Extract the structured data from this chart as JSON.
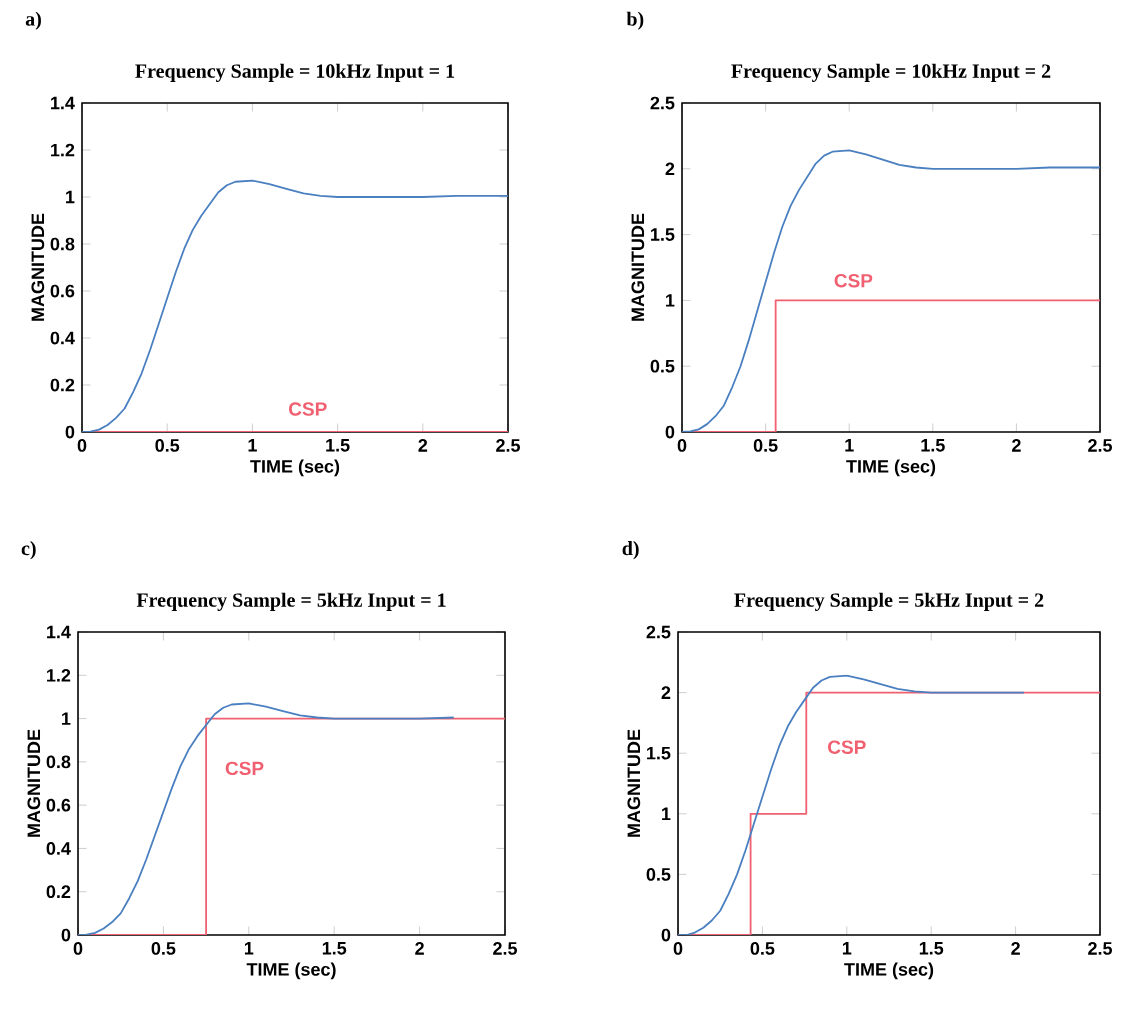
{
  "chart_data": [
    {
      "type": "line",
      "title": "Frequency Sample = 10kHz  Input = 1",
      "xlabel": "TIME (sec)",
      "ylabel": "MAGNITUDE",
      "annotations": [
        "a)"
      ],
      "xlim": [
        0,
        2.5
      ],
      "ylim": [
        0,
        1.4
      ],
      "xticks": [
        0,
        0.5,
        1,
        1.5,
        2,
        2.5
      ],
      "yticks": [
        0,
        0.2,
        0.4,
        0.6,
        0.8,
        1,
        1.2,
        1.4
      ],
      "grid": false,
      "line_style": "solid",
      "series": [
        {
          "type": "line",
          "color": "#4a7fc0",
          "x": [
            0,
            0.05,
            0.1,
            0.15,
            0.2,
            0.25,
            0.3,
            0.35,
            0.4,
            0.45,
            0.5,
            0.55,
            0.6,
            0.65,
            0.7,
            0.75,
            0.8,
            0.85,
            0.9,
            1.0,
            1.1,
            1.2,
            1.3,
            1.4,
            1.5,
            1.6,
            1.8,
            2.0,
            2.2,
            2.5
          ],
          "values": [
            0,
            0.002,
            0.01,
            0.03,
            0.06,
            0.1,
            0.17,
            0.25,
            0.35,
            0.46,
            0.57,
            0.68,
            0.78,
            0.86,
            0.92,
            0.97,
            1.02,
            1.05,
            1.065,
            1.07,
            1.055,
            1.035,
            1.015,
            1.005,
            1.0,
            1.0,
            1.0,
            1.0,
            1.005,
            1.005
          ]
        },
        {
          "type": "step",
          "name": "CSP",
          "color": "#f06070",
          "x": [
            0,
            2.5
          ],
          "values": [
            0,
            0
          ]
        }
      ]
    },
    {
      "type": "line",
      "title": "Frequency Sample = 10kHz  Input = 2",
      "xlabel": "TIME (sec)",
      "ylabel": "MAGNITUDE",
      "annotations": [
        "b)"
      ],
      "xlim": [
        0,
        2.5
      ],
      "ylim": [
        0,
        2.5
      ],
      "xticks": [
        0,
        0.5,
        1,
        1.5,
        2,
        2.5
      ],
      "yticks": [
        0,
        0.5,
        1,
        1.5,
        2,
        2.5
      ],
      "grid": false,
      "line_style": "solid",
      "series": [
        {
          "type": "line",
          "color": "#4a7fc0",
          "x": [
            0,
            0.05,
            0.1,
            0.15,
            0.2,
            0.25,
            0.3,
            0.35,
            0.4,
            0.45,
            0.5,
            0.55,
            0.6,
            0.65,
            0.7,
            0.75,
            0.8,
            0.85,
            0.9,
            1.0,
            1.1,
            1.2,
            1.3,
            1.4,
            1.5,
            1.6,
            1.8,
            2.0,
            2.2,
            2.5
          ],
          "values": [
            0,
            0.004,
            0.02,
            0.06,
            0.12,
            0.2,
            0.34,
            0.5,
            0.7,
            0.92,
            1.14,
            1.36,
            1.56,
            1.72,
            1.84,
            1.94,
            2.04,
            2.1,
            2.13,
            2.14,
            2.11,
            2.07,
            2.03,
            2.01,
            2.0,
            2.0,
            2.0,
            2.0,
            2.01,
            2.01
          ]
        },
        {
          "type": "step",
          "name": "CSP",
          "color": "#f06070",
          "x": [
            0,
            0.56,
            2.5
          ],
          "values": [
            0,
            1,
            1
          ]
        }
      ]
    },
    {
      "type": "line",
      "title": "Frequency Sample = 5kHz    Input = 1",
      "xlabel": "TIME (sec)",
      "ylabel": "MAGNITUDE",
      "annotations": [
        "c)"
      ],
      "xlim": [
        0,
        2.5
      ],
      "ylim": [
        0,
        1.4
      ],
      "xticks": [
        0,
        0.5,
        1,
        1.5,
        2,
        2.5
      ],
      "yticks": [
        0,
        0.2,
        0.4,
        0.6,
        0.8,
        1,
        1.2,
        1.4
      ],
      "grid": false,
      "line_style": "solid",
      "series": [
        {
          "type": "line",
          "color": "#4a7fc0",
          "x": [
            0,
            0.05,
            0.1,
            0.15,
            0.2,
            0.25,
            0.3,
            0.35,
            0.4,
            0.45,
            0.5,
            0.55,
            0.6,
            0.65,
            0.7,
            0.75,
            0.8,
            0.85,
            0.9,
            1.0,
            1.1,
            1.2,
            1.3,
            1.4,
            1.5,
            1.6,
            1.8,
            2.0,
            2.2
          ],
          "values": [
            0,
            0.002,
            0.01,
            0.03,
            0.06,
            0.1,
            0.17,
            0.25,
            0.35,
            0.46,
            0.57,
            0.68,
            0.78,
            0.86,
            0.92,
            0.97,
            1.02,
            1.05,
            1.065,
            1.07,
            1.055,
            1.035,
            1.015,
            1.005,
            1.0,
            1.0,
            1.0,
            1.0,
            1.005
          ]
        },
        {
          "type": "step",
          "name": "CSP",
          "color": "#f06070",
          "x": [
            0,
            0.75,
            2.5
          ],
          "values": [
            0,
            1,
            1
          ]
        }
      ]
    },
    {
      "type": "line",
      "title": "Frequency Sample = 5kHz    Input = 2",
      "xlabel": "TIME (sec)",
      "ylabel": "MAGNITUDE",
      "annotations": [
        "d)"
      ],
      "xlim": [
        0,
        2.5
      ],
      "ylim": [
        0,
        2.5
      ],
      "xticks": [
        0,
        0.5,
        1,
        1.5,
        2,
        2.5
      ],
      "yticks": [
        0,
        0.5,
        1,
        1.5,
        2,
        2.5
      ],
      "grid": false,
      "line_style": "solid",
      "series": [
        {
          "type": "line",
          "color": "#4a7fc0",
          "x": [
            0,
            0.05,
            0.1,
            0.15,
            0.2,
            0.25,
            0.3,
            0.35,
            0.4,
            0.45,
            0.5,
            0.55,
            0.6,
            0.65,
            0.7,
            0.75,
            0.8,
            0.85,
            0.9,
            1.0,
            1.1,
            1.2,
            1.3,
            1.4,
            1.5,
            1.6,
            1.8,
            2.05
          ],
          "values": [
            0,
            0,
            0.02,
            0.06,
            0.12,
            0.2,
            0.34,
            0.5,
            0.7,
            0.92,
            1.14,
            1.36,
            1.56,
            1.72,
            1.84,
            1.94,
            2.04,
            2.1,
            2.13,
            2.14,
            2.11,
            2.07,
            2.03,
            2.01,
            2.0,
            2.0,
            2.0,
            2.0
          ]
        },
        {
          "type": "step",
          "name": "CSP",
          "color": "#f06070",
          "x": [
            0,
            0.43,
            0.76,
            2.5
          ],
          "values": [
            0,
            1,
            2,
            2
          ]
        }
      ]
    }
  ]
}
